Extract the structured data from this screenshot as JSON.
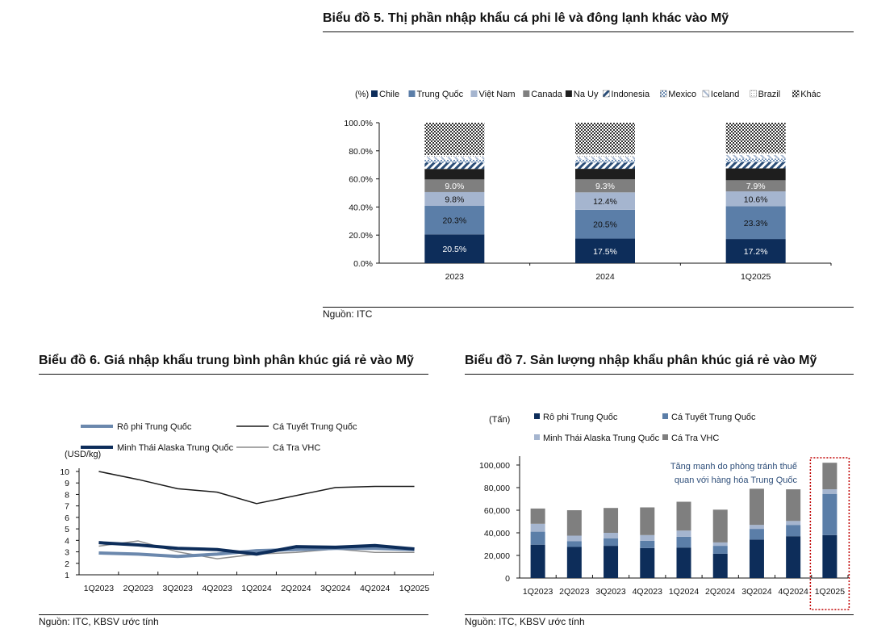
{
  "chart5": {
    "title": "Biểu đồ 5. Thị phần nhập khẩu cá phi lê và đông lạnh khác vào Mỹ",
    "source": "Nguồn: ITC"
  },
  "chart6": {
    "title": "Biểu đồ 6. Giá nhập khẩu trung bình phân khúc giá rẻ vào Mỹ",
    "source": "Nguồn: ITC, KBSV ước tính"
  },
  "chart7": {
    "title": "Biểu đồ 7. Sản lượng nhập khẩu phân khúc giá rẻ vào Mỹ",
    "source": "Nguồn: ITC, KBSV ước tính",
    "annotation_line1": "Tăng mạnh do phòng tránh thuế",
    "annotation_line2": "quan với hàng hóa Trung Quốc"
  },
  "chart_data": [
    {
      "type": "bar",
      "stacked": true,
      "title": "Biểu đồ 5. Thị phần nhập khẩu cá phi lê và đông lạnh khác vào Mỹ",
      "unit_label": "(%)",
      "categories": [
        "2023",
        "2024",
        "1Q2025"
      ],
      "ylim": [
        0,
        100
      ],
      "yticks": [
        "0.0%",
        "20.0%",
        "40.0%",
        "60.0%",
        "80.0%",
        "100.0%"
      ],
      "legend_position": "top",
      "series": [
        {
          "name": "Chile",
          "color": "#0d2d5a",
          "values": [
            20.5,
            17.5,
            17.2
          ],
          "labels": [
            "20.5%",
            "17.5%",
            "17.2%"
          ],
          "label_color": "#ffffff"
        },
        {
          "name": "Trung Quốc",
          "color": "#5b7ea8",
          "values": [
            20.3,
            20.5,
            23.3
          ],
          "labels": [
            "20.3%",
            "20.5%",
            "23.3%"
          ],
          "label_color": "#111111"
        },
        {
          "name": "Việt Nam",
          "color": "#a5b5cf",
          "values": [
            9.8,
            12.4,
            10.6
          ],
          "labels": [
            "9.8%",
            "12.4%",
            "10.6%"
          ],
          "label_color": "#111111"
        },
        {
          "name": "Canada",
          "color": "#7f7f7f",
          "values": [
            9.0,
            9.3,
            7.9
          ],
          "labels": [
            "9.0%",
            "9.3%",
            "7.9%"
          ],
          "label_color": "#ffffff"
        },
        {
          "name": "Na Uy",
          "color": "#1e1e1e",
          "values": [
            7.5,
            7.5,
            8.5
          ]
        },
        {
          "name": "Indonesia",
          "color": "#2b4e78",
          "pattern": "stripe",
          "values": [
            4.5,
            4.5,
            4.5
          ]
        },
        {
          "name": "Mexico",
          "color": "#6f8fb5",
          "pattern": "grid",
          "values": [
            2.0,
            2.0,
            2.5
          ]
        },
        {
          "name": "Iceland",
          "color": "#c8d3e3",
          "pattern": "dash",
          "values": [
            2.0,
            2.0,
            2.5
          ]
        },
        {
          "name": "Brazil",
          "color": "#d9d9d9",
          "pattern": "dots",
          "values": [
            1.4,
            1.8,
            1.5
          ]
        },
        {
          "name": "Khác",
          "color": "#404040",
          "pattern": "checker",
          "values": [
            23.0,
            22.5,
            21.5
          ]
        }
      ]
    },
    {
      "type": "line",
      "title": "Biểu đồ 6. Giá nhập khẩu trung bình phân khúc giá rẻ vào Mỹ",
      "ylabel": "(USD/kg)",
      "categories": [
        "1Q2023",
        "2Q2023",
        "3Q2023",
        "4Q2023",
        "1Q2024",
        "2Q2024",
        "3Q2024",
        "4Q2024",
        "1Q2025"
      ],
      "ylim": [
        1,
        10
      ],
      "yticks": [
        "1",
        "2",
        "3",
        "4",
        "5",
        "6",
        "7",
        "8",
        "9",
        "10"
      ],
      "legend_position": "top",
      "series": [
        {
          "name": "Rô phi Trung Quốc",
          "color": "#6b88ad",
          "width": 4,
          "values": [
            2.9,
            2.8,
            2.6,
            2.8,
            3.1,
            3.2,
            3.3,
            3.3,
            3.2
          ]
        },
        {
          "name": "Cá Tuyết Trung Quốc",
          "color": "#1a1a1a",
          "width": 1.5,
          "values": [
            10.0,
            9.3,
            8.5,
            8.2,
            7.2,
            7.9,
            8.6,
            8.7,
            8.7
          ]
        },
        {
          "name": "Minh Thái Alaska Trung Quốc",
          "color": "#0d2d5a",
          "width": 4,
          "values": [
            3.8,
            3.6,
            3.3,
            3.2,
            2.8,
            3.45,
            3.4,
            3.55,
            3.25
          ]
        },
        {
          "name": "Cá Tra VHC",
          "color": "#8c8c8c",
          "width": 1.5,
          "values": [
            3.5,
            3.95,
            3.0,
            2.4,
            2.8,
            2.95,
            3.25,
            2.95,
            2.95
          ]
        }
      ]
    },
    {
      "type": "bar",
      "stacked": true,
      "title": "Biểu đồ 7. Sản lượng nhập khẩu phân khúc giá rẻ vào Mỹ",
      "ylabel": "(Tấn)",
      "categories": [
        "1Q2023",
        "2Q2023",
        "3Q2023",
        "4Q2023",
        "1Q2024",
        "2Q2024",
        "3Q2024",
        "4Q2024",
        "1Q2025"
      ],
      "ylim": [
        0,
        100000
      ],
      "yticks": [
        "0",
        "20,000",
        "40,000",
        "60,000",
        "80,000",
        "100,000"
      ],
      "legend_position": "top",
      "highlight_category": "1Q2025",
      "series": [
        {
          "name": "Rô phi Trung Quốc",
          "color": "#0d2d5a",
          "values": [
            29500,
            27500,
            28500,
            26500,
            27000,
            21500,
            34000,
            37000,
            38000
          ]
        },
        {
          "name": "Cá Tuyết Trung Quốc",
          "color": "#5b7ea8",
          "values": [
            11500,
            5000,
            6500,
            6500,
            9500,
            7000,
            9500,
            10000,
            36500
          ]
        },
        {
          "name": "Minh Thái Alaska Trung Quốc",
          "color": "#a5b5cf",
          "values": [
            7000,
            5000,
            5000,
            5000,
            5500,
            3000,
            3500,
            3500,
            4000
          ]
        },
        {
          "name": "Cá Tra VHC",
          "color": "#7f7f7f",
          "values": [
            13500,
            22500,
            22000,
            24500,
            25500,
            29000,
            32000,
            28000,
            23500
          ]
        }
      ]
    }
  ]
}
